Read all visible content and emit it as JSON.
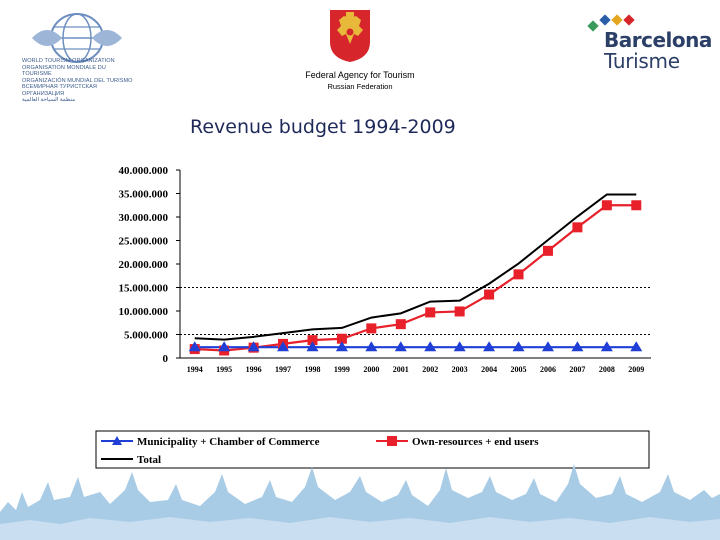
{
  "header": {
    "wto_text_lines": [
      "WORLD TOURISM ORGANIZATION",
      "ORGANISATION MONDIALE DU TOURISME",
      "ORGANIZACIÓN MUNDIAL DEL TURISMO",
      "ВСЕМИРНАЯ ТУРИСТСКАЯ ОРГАНИЗАЦИЯ",
      "منظمة السياحة العالمية"
    ],
    "agency_title": "Federal Agency for Tourism",
    "agency_subtitle": "Russian Federation",
    "brand_name": "Barcelona",
    "brand_subname": "Turisme"
  },
  "slide_title": "Revenue budget 1994-2009",
  "chart_data": {
    "type": "line",
    "title": "",
    "xlabel": "",
    "ylabel": "",
    "categories": [
      "1994",
      "1995",
      "1996",
      "1997",
      "1998",
      "1999",
      "2000",
      "2001",
      "2002",
      "2003",
      "2004",
      "2005",
      "2006",
      "2007",
      "2008",
      "2009"
    ],
    "ylim": [
      0,
      40000000
    ],
    "y_ticks": [
      0,
      5000000,
      10000000,
      15000000,
      20000000,
      25000000,
      30000000,
      35000000,
      40000000
    ],
    "y_tick_labels": [
      "0",
      "5.000.000",
      "10.000.000",
      "15.000.000",
      "20.000.000",
      "25.000.000",
      "30.000.000",
      "35.000.000",
      "40.000.000"
    ],
    "reference_lines": [
      5000000,
      15000000
    ],
    "series": [
      {
        "name": "Municipality + Chamber of Commerce",
        "color": "#1f3fd6",
        "marker": "triangle",
        "values": [
          2300000,
          2300000,
          2300000,
          2300000,
          2300000,
          2300000,
          2300000,
          2300000,
          2300000,
          2300000,
          2300000,
          2300000,
          2300000,
          2300000,
          2300000,
          2300000
        ]
      },
      {
        "name": "Own-resources + end users",
        "color": "#e8202a",
        "marker": "square",
        "values": [
          1900000,
          1600000,
          2200000,
          3000000,
          3800000,
          4100000,
          6300000,
          7200000,
          9700000,
          9900000,
          13500000,
          17800000,
          22800000,
          27800000,
          32500000,
          32500000
        ]
      },
      {
        "name": "Total",
        "color": "#000000",
        "marker": "none",
        "values": [
          4200000,
          3900000,
          4500000,
          5300000,
          6100000,
          6400000,
          8600000,
          9500000,
          12000000,
          12200000,
          15800000,
          20100000,
          25100000,
          30100000,
          34800000,
          34800000
        ]
      }
    ],
    "legend_position": "bottom",
    "grid": false
  },
  "colors": {
    "title_color": "#1f2a5a",
    "brand_color": "#2b3f67",
    "skyline_color": "#a8cbe6"
  },
  "icons": [
    "globe-icon",
    "coat-of-arms-icon",
    "barcelona-diamonds-icon",
    "city-skyline-icon"
  ]
}
